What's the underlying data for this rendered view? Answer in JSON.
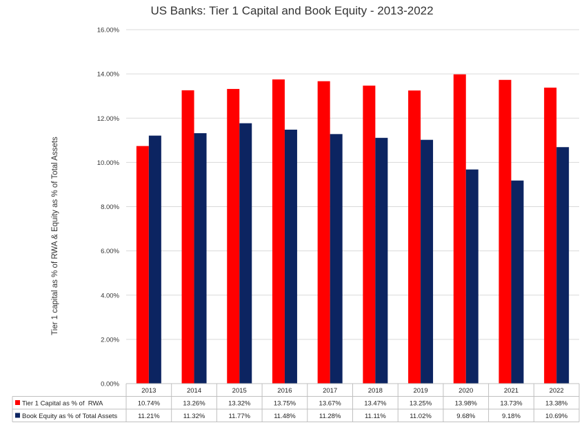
{
  "chart_data": {
    "type": "bar",
    "title": "US Banks: Tier 1 Capital and Book Equity - 2013-2022",
    "ylabel": "Tier 1 capital as % of RWA & Equity as % of Total Assets",
    "xlabel": "",
    "ylim": [
      0,
      16
    ],
    "yticks": [
      "0.00%",
      "2.00%",
      "4.00%",
      "6.00%",
      "8.00%",
      "10.00%",
      "12.00%",
      "14.00%",
      "16.00%"
    ],
    "categories": [
      "2013",
      "2014",
      "2015",
      "2016",
      "2017",
      "2018",
      "2019",
      "2020",
      "2021",
      "2022"
    ],
    "grid": true,
    "legend_placement": "data table",
    "series": [
      {
        "name": "Tier 1 Capital as % of  RWA",
        "color": "#ff0000",
        "values": [
          10.74,
          13.26,
          13.32,
          13.75,
          13.67,
          13.47,
          13.25,
          13.98,
          13.73,
          13.38
        ],
        "labels": [
          "10.74%",
          "13.26%",
          "13.32%",
          "13.75%",
          "13.67%",
          "13.47%",
          "13.25%",
          "13.98%",
          "13.73%",
          "13.38%"
        ]
      },
      {
        "name": "Book Equity as % of Total Assets",
        "color": "#0c2461",
        "values": [
          11.21,
          11.32,
          11.77,
          11.48,
          11.28,
          11.11,
          11.02,
          9.68,
          9.18,
          10.69
        ],
        "labels": [
          "11.21%",
          "11.32%",
          "11.77%",
          "11.48%",
          "11.28%",
          "11.11%",
          "11.02%",
          "9.68%",
          "9.18%",
          "10.69%"
        ]
      }
    ]
  }
}
